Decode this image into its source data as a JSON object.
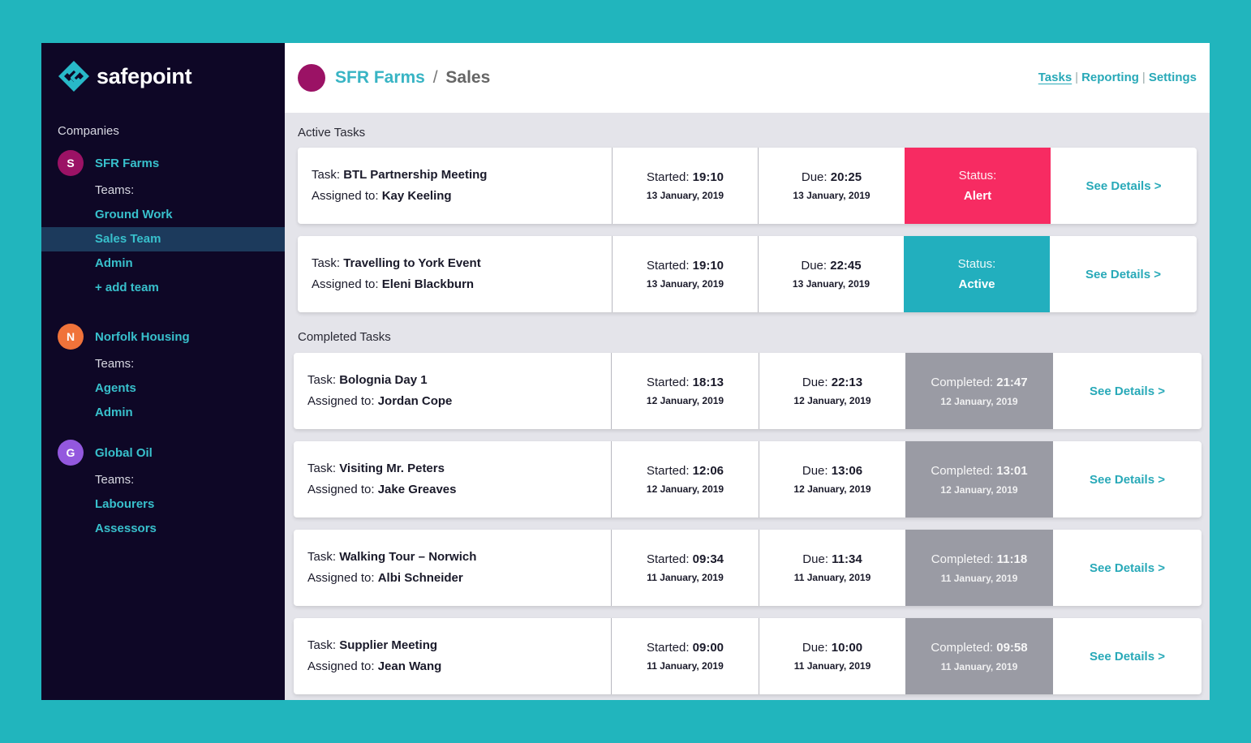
{
  "brand": {
    "name": "safepoint"
  },
  "sidebar": {
    "companies_label": "Companies",
    "companies": [
      {
        "initial": "S",
        "name": "SFR Farms",
        "color": "#9b1265",
        "teams_label": "Teams:",
        "teams": [
          "Ground Work",
          "Sales Team",
          "Admin",
          "+ add team"
        ]
      },
      {
        "initial": "N",
        "name": "Norfolk Housing",
        "color": "#f0733a",
        "teams_label": "Teams:",
        "teams": [
          "Agents",
          "Admin"
        ]
      },
      {
        "initial": "G",
        "name": "Global Oil",
        "color": "#9358de",
        "teams_label": "Teams:",
        "teams": [
          "Labourers",
          "Assessors"
        ]
      }
    ],
    "selected_team": "Sales Team"
  },
  "header": {
    "company": "SFR Farms",
    "separator": "/",
    "team": "Sales",
    "nav": [
      "Tasks",
      "Reporting",
      "Settings"
    ],
    "nav_current": "Tasks"
  },
  "active_section": {
    "label": "Active Tasks"
  },
  "completed_section": {
    "label": "Completed Tasks"
  },
  "labels": {
    "task": "Task: ",
    "assigned": "Assigned to: ",
    "started": "Started: ",
    "due": "Due: ",
    "status": "Status:",
    "completed": "Completed: ",
    "details": "See Details >"
  },
  "active_tasks": [
    {
      "task": "BTL Partnership Meeting",
      "assigned": "Kay Keeling",
      "started_time": "19:10",
      "started_date": "13 January, 2019",
      "due_time": "20:25",
      "due_date": "13 January, 2019",
      "status": "Alert",
      "status_color": "#f72b62"
    },
    {
      "task": "Travelling to York Event",
      "assigned": "Eleni Blackburn",
      "started_time": "19:10",
      "started_date": "13 January, 2019",
      "due_time": "22:45",
      "due_date": "13 January, 2019",
      "status": "Active",
      "status_color": "#22afbe"
    }
  ],
  "completed_tasks": [
    {
      "task": "Bolognia Day 1",
      "assigned": "Jordan Cope",
      "started_time": "18:13",
      "started_date": "12 January, 2019",
      "due_time": "22:13",
      "due_date": "12 January, 2019",
      "completed_time": "21:47",
      "completed_date": "12 January, 2019"
    },
    {
      "task": "Visiting Mr. Peters",
      "assigned": "Jake Greaves",
      "started_time": "12:06",
      "started_date": "12 January, 2019",
      "due_time": "13:06",
      "due_date": "12 January, 2019",
      "completed_time": "13:01",
      "completed_date": "12 January, 2019"
    },
    {
      "task": "Walking Tour – Norwich",
      "assigned": "Albi Schneider",
      "started_time": "09:34",
      "started_date": "11 January, 2019",
      "due_time": "11:34",
      "due_date": "11 January, 2019",
      "completed_time": "11:18",
      "completed_date": "11 January, 2019"
    },
    {
      "task": "Supplier Meeting",
      "assigned": "Jean Wang",
      "started_time": "09:00",
      "started_date": "11 January, 2019",
      "due_time": "10:00",
      "due_date": "11 January, 2019",
      "completed_time": "09:58",
      "completed_date": "11 January, 2019"
    }
  ],
  "colors": {
    "background": "#21b5bd",
    "sidebar": "#0e0726",
    "accent": "#28a9b8",
    "completed_status": "#9a9ba4"
  }
}
